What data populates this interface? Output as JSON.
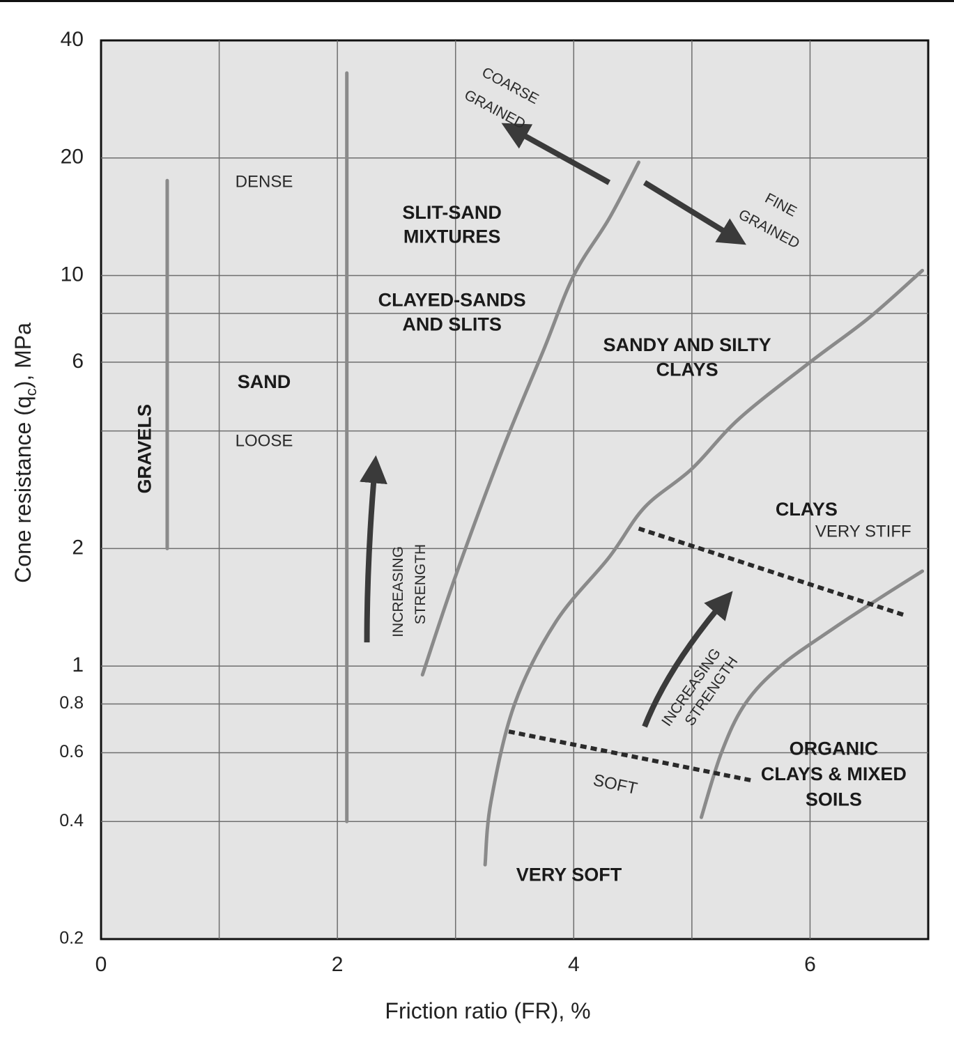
{
  "chart_data": {
    "type": "line",
    "xlabel": "Friction ratio (FR), %",
    "ylabel_main": "Cone resistance (q",
    "ylabel_sub": "c",
    "ylabel_tail": "), MPa",
    "xlim": [
      0,
      7
    ],
    "ylim": [
      0.2,
      40
    ],
    "y_scale": "log",
    "grid": true,
    "x_ticks": [
      "0",
      "2",
      "4",
      "6"
    ],
    "y_ticks": [
      {
        "value": 40,
        "label": "40",
        "size": "large"
      },
      {
        "value": 20,
        "label": "20",
        "size": "large"
      },
      {
        "value": 10,
        "label": "10",
        "size": "large"
      },
      {
        "value": 6,
        "label": "6",
        "size": "large"
      },
      {
        "value": 2,
        "label": "2",
        "size": "large"
      },
      {
        "value": 1,
        "label": "1",
        "size": "large"
      },
      {
        "value": 0.8,
        "label": "0.8",
        "size": "small"
      },
      {
        "value": 0.6,
        "label": "0.6",
        "size": "small"
      },
      {
        "value": 0.4,
        "label": "0.4",
        "size": "small"
      },
      {
        "value": 0.2,
        "label": "0.2",
        "size": "small"
      }
    ],
    "grid_x": [
      1,
      2,
      3,
      4,
      5,
      6
    ],
    "grid_y": [
      20,
      10,
      8,
      6,
      4,
      2,
      1,
      0.8,
      0.6,
      0.4
    ],
    "boundaries": [
      {
        "id": "gravel-line",
        "style": "solid",
        "points": [
          [
            0.56,
            2.0
          ],
          [
            0.56,
            17.5
          ]
        ]
      },
      {
        "id": "sand-line",
        "style": "solid",
        "points": [
          [
            2.08,
            0.4
          ],
          [
            2.08,
            33
          ]
        ]
      },
      {
        "id": "coarse-fine-boundary",
        "style": "solid",
        "points": [
          [
            2.72,
            0.95
          ],
          [
            3.0,
            1.7
          ],
          [
            3.4,
            3.6
          ],
          [
            3.75,
            6.5
          ],
          [
            4.0,
            10
          ],
          [
            4.3,
            14
          ],
          [
            4.55,
            19.5
          ]
        ]
      },
      {
        "id": "silty-clay-boundary",
        "style": "solid",
        "points": [
          [
            3.25,
            0.31
          ],
          [
            3.3,
            0.45
          ],
          [
            3.5,
            0.8
          ],
          [
            3.85,
            1.3
          ],
          [
            4.3,
            1.9
          ],
          [
            4.6,
            2.55
          ],
          [
            5.0,
            3.2
          ],
          [
            5.4,
            4.3
          ],
          [
            6.0,
            6.0
          ],
          [
            6.5,
            7.8
          ],
          [
            6.95,
            10.3
          ]
        ]
      },
      {
        "id": "organic-clay-boundary",
        "style": "solid",
        "points": [
          [
            5.08,
            0.41
          ],
          [
            5.25,
            0.6
          ],
          [
            5.45,
            0.8
          ],
          [
            5.75,
            1.0
          ],
          [
            6.2,
            1.25
          ],
          [
            6.6,
            1.5
          ],
          [
            6.95,
            1.75
          ]
        ]
      },
      {
        "id": "very-stiff-boundary",
        "style": "dashed",
        "points": [
          [
            4.55,
            2.25
          ],
          [
            6.8,
            1.35
          ]
        ]
      },
      {
        "id": "soft-boundary",
        "style": "dashed",
        "points": [
          [
            3.45,
            0.68
          ],
          [
            5.5,
            0.51
          ]
        ]
      }
    ],
    "zone_labels": [
      {
        "text": "GRAVELS",
        "x": 0.38,
        "y": 3.6,
        "style": "bold",
        "rotate": -90
      },
      {
        "text": "DENSE",
        "x": 1.38,
        "y": 17.3,
        "style": "light",
        "rotate": 0
      },
      {
        "text": "SAND",
        "x": 1.38,
        "y": 5.3,
        "style": "bold",
        "rotate": 0
      },
      {
        "text": "LOOSE",
        "x": 1.38,
        "y": 3.75,
        "style": "light",
        "rotate": 0
      },
      {
        "text": "SLIT-SAND",
        "x": 2.97,
        "y": 14.4,
        "style": "bold",
        "rotate": 0
      },
      {
        "text": "MIXTURES",
        "x": 2.97,
        "y": 12.5,
        "style": "bold",
        "rotate": 0
      },
      {
        "text": "CLAYED-SANDS",
        "x": 2.97,
        "y": 8.6,
        "style": "bold",
        "rotate": 0
      },
      {
        "text": "AND SLITS",
        "x": 2.97,
        "y": 7.45,
        "style": "bold",
        "rotate": 0
      },
      {
        "text": "SANDY AND SILTY",
        "x": 4.96,
        "y": 6.6,
        "style": "bold",
        "rotate": 0
      },
      {
        "text": "CLAYS",
        "x": 4.96,
        "y": 5.7,
        "style": "bold",
        "rotate": 0
      },
      {
        "text": "CLAYS",
        "x": 5.97,
        "y": 2.5,
        "style": "bold",
        "rotate": 0
      },
      {
        "text": "VERY STIFF",
        "x": 6.45,
        "y": 2.2,
        "style": "light",
        "rotate": 0
      },
      {
        "text": "ORGANIC",
        "x": 6.2,
        "y": 0.61,
        "style": "bold",
        "rotate": 0
      },
      {
        "text": "CLAYS & MIXED",
        "x": 6.2,
        "y": 0.525,
        "style": "bold",
        "rotate": 0
      },
      {
        "text": "SOILS",
        "x": 6.2,
        "y": 0.452,
        "style": "bold",
        "rotate": 0
      },
      {
        "text": "SOFT",
        "x": 4.35,
        "y": 0.495,
        "style": "light",
        "rotate": 12
      },
      {
        "text": "VERY SOFT",
        "x": 3.96,
        "y": 0.29,
        "style": "bold",
        "rotate": 0
      },
      {
        "text": "COARSE",
        "x": 3.46,
        "y": 30.5,
        "style": "note",
        "rotate": 28
      },
      {
        "text": "GRAINED",
        "x": 3.33,
        "y": 26.5,
        "style": "note",
        "rotate": 28
      },
      {
        "text": "FINE",
        "x": 5.75,
        "y": 15.1,
        "style": "note",
        "rotate": 28
      },
      {
        "text": "GRAINED",
        "x": 5.65,
        "y": 13.1,
        "style": "note",
        "rotate": 28
      },
      {
        "text": "INCREASING",
        "x": 2.52,
        "y": 1.55,
        "style": "note",
        "rotate": -90
      },
      {
        "text": "STRENGTH",
        "x": 2.71,
        "y": 1.62,
        "style": "note",
        "rotate": -90
      },
      {
        "text": "INCREASING",
        "x": 5.0,
        "y": 0.88,
        "style": "note",
        "rotate": -55
      },
      {
        "text": "STRENGTH",
        "x": 5.17,
        "y": 0.86,
        "style": "note",
        "rotate": -55
      }
    ],
    "arrows": [
      {
        "id": "coarse-grained-arrow",
        "points": [
          [
            4.3,
            17.3
          ],
          [
            3.45,
            24.0
          ]
        ]
      },
      {
        "id": "fine-grained-arrow",
        "points": [
          [
            4.6,
            17.3
          ],
          [
            5.4,
            12.3
          ]
        ]
      },
      {
        "id": "increasing-strength-arrow-left",
        "points": [
          [
            2.25,
            1.15
          ],
          [
            2.25,
            1.9
          ],
          [
            2.32,
            3.3
          ]
        ]
      },
      {
        "id": "increasing-strength-arrow-right",
        "points": [
          [
            4.6,
            0.7
          ],
          [
            4.8,
            1.0
          ],
          [
            5.3,
            1.5
          ]
        ]
      }
    ]
  }
}
